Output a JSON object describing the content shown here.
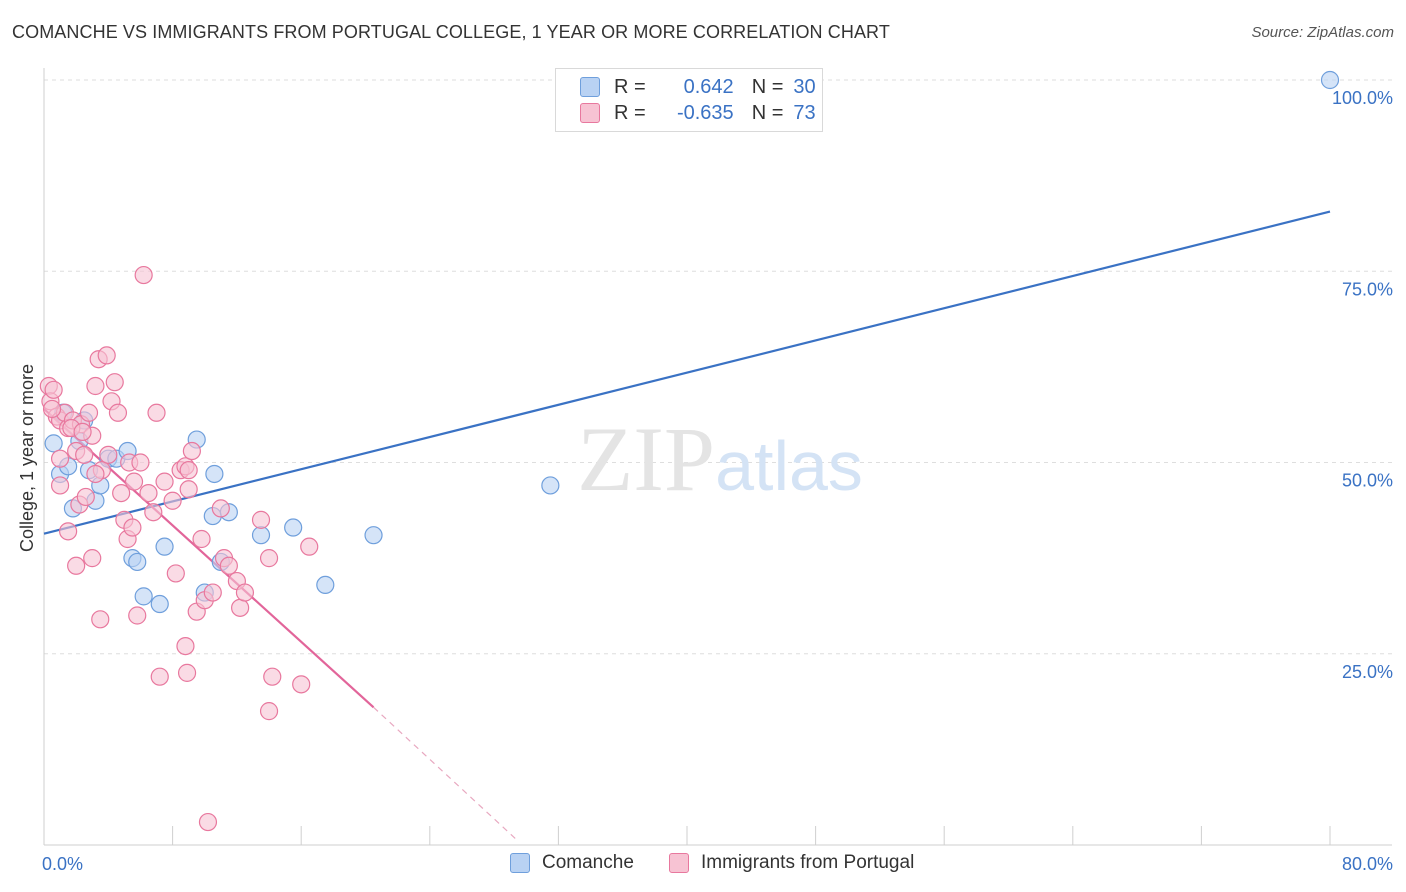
{
  "chart_data": {
    "type": "scatter",
    "title": "COMANCHE VS IMMIGRANTS FROM PORTUGAL COLLEGE, 1 YEAR OR MORE CORRELATION CHART",
    "source": "Source: ZipAtlas.com",
    "xlabel": "",
    "ylabel": "College, 1 year or more",
    "xlim": [
      0,
      80
    ],
    "ylim": [
      0,
      100
    ],
    "x_tick_labels": {
      "min": "0.0%",
      "max": "80.0%"
    },
    "y_tick_labels": [
      "25.0%",
      "50.0%",
      "75.0%",
      "100.0%"
    ],
    "y_ticks": [
      25,
      50,
      75,
      100
    ],
    "grid": true,
    "legend_position": "top-center",
    "watermark": "ZIPatlas",
    "stats": [
      {
        "r_label": "R =",
        "r_value": "0.642",
        "n_label": "N =",
        "n_value": "30"
      },
      {
        "r_label": "R =",
        "r_value": "-0.635",
        "n_label": "N =",
        "n_value": "73"
      }
    ],
    "series": [
      {
        "name": "Comanche",
        "color": "#6f9fdc",
        "fill": "#b9d2f3",
        "trend": {
          "x0": 0,
          "y0": 40.7,
          "x1": 80,
          "y1": 82.8
        },
        "points": [
          [
            0.6,
            52.5
          ],
          [
            1.0,
            48.5
          ],
          [
            1.5,
            49.5
          ],
          [
            1.8,
            44.0
          ],
          [
            2.2,
            52.8
          ],
          [
            2.8,
            49.0
          ],
          [
            3.2,
            45.0
          ],
          [
            3.5,
            47.0
          ],
          [
            4.0,
            50.5
          ],
          [
            4.5,
            50.5
          ],
          [
            5.2,
            51.5
          ],
          [
            5.5,
            37.5
          ],
          [
            5.8,
            37.0
          ],
          [
            6.2,
            32.5
          ],
          [
            7.2,
            31.5
          ],
          [
            7.5,
            39.0
          ],
          [
            9.5,
            53.0
          ],
          [
            10.0,
            33.0
          ],
          [
            10.5,
            43.0
          ],
          [
            10.6,
            48.5
          ],
          [
            11.0,
            37.0
          ],
          [
            11.5,
            43.5
          ],
          [
            13.5,
            40.5
          ],
          [
            15.5,
            41.5
          ],
          [
            17.5,
            34.0
          ],
          [
            20.5,
            40.5
          ],
          [
            31.5,
            47.0
          ],
          [
            80.0,
            100.0
          ],
          [
            1.2,
            56.5
          ],
          [
            2.5,
            55.5
          ]
        ]
      },
      {
        "name": "Immigrants from Portugal",
        "color": "#e8789e",
        "fill": "#f7c3d3",
        "trend": {
          "x0": 0,
          "y0": 57.0,
          "x1": 20.5,
          "y1": 18.0
        },
        "trend_ext": {
          "x0": 20.5,
          "y0": 18.0,
          "x1": 29.5,
          "y1": 0.5
        },
        "points": [
          [
            0.3,
            60.0
          ],
          [
            0.4,
            58.0
          ],
          [
            0.6,
            59.5
          ],
          [
            0.8,
            56.0
          ],
          [
            1.0,
            55.5
          ],
          [
            1.3,
            56.5
          ],
          [
            1.5,
            54.5
          ],
          [
            1.8,
            55.5
          ],
          [
            2.0,
            51.5
          ],
          [
            2.3,
            55.0
          ],
          [
            2.5,
            51.0
          ],
          [
            2.8,
            56.5
          ],
          [
            3.0,
            53.5
          ],
          [
            3.2,
            60.0
          ],
          [
            3.4,
            63.5
          ],
          [
            3.6,
            49.0
          ],
          [
            3.9,
            64.0
          ],
          [
            4.2,
            58.0
          ],
          [
            4.4,
            60.5
          ],
          [
            4.6,
            56.5
          ],
          [
            4.8,
            46.0
          ],
          [
            5.0,
            42.5
          ],
          [
            5.3,
            50.0
          ],
          [
            5.6,
            47.5
          ],
          [
            6.2,
            74.5
          ],
          [
            6.5,
            46.0
          ],
          [
            6.8,
            43.5
          ],
          [
            7.0,
            56.5
          ],
          [
            7.5,
            47.5
          ],
          [
            8.0,
            45.0
          ],
          [
            8.2,
            35.5
          ],
          [
            8.5,
            49.0
          ],
          [
            8.8,
            49.5
          ],
          [
            9.0,
            46.5
          ],
          [
            9.2,
            51.5
          ],
          [
            9.5,
            30.5
          ],
          [
            9.8,
            40.0
          ],
          [
            10.0,
            32.0
          ],
          [
            10.5,
            33.0
          ],
          [
            11.0,
            44.0
          ],
          [
            11.2,
            37.5
          ],
          [
            11.5,
            36.5
          ],
          [
            12.0,
            34.5
          ],
          [
            12.2,
            31.0
          ],
          [
            12.5,
            33.0
          ],
          [
            13.5,
            42.5
          ],
          [
            14.0,
            37.5
          ],
          [
            14.2,
            22.0
          ],
          [
            16.0,
            21.0
          ],
          [
            16.5,
            39.0
          ],
          [
            1.0,
            47.0
          ],
          [
            1.5,
            41.0
          ],
          [
            2.0,
            36.5
          ],
          [
            3.0,
            37.5
          ],
          [
            3.5,
            29.5
          ],
          [
            5.2,
            40.0
          ],
          [
            5.8,
            30.0
          ],
          [
            7.2,
            22.0
          ],
          [
            8.8,
            26.0
          ],
          [
            8.9,
            22.5
          ],
          [
            10.2,
            3.0
          ],
          [
            14.0,
            17.5
          ],
          [
            1.0,
            50.5
          ],
          [
            2.2,
            44.5
          ],
          [
            2.6,
            45.5
          ],
          [
            6.0,
            50.0
          ],
          [
            3.2,
            48.5
          ],
          [
            4.0,
            51.0
          ],
          [
            0.5,
            57.0
          ],
          [
            1.7,
            54.5
          ],
          [
            2.4,
            54.0
          ],
          [
            9.0,
            49.0
          ],
          [
            5.5,
            41.5
          ]
        ]
      }
    ]
  },
  "legend_bottom": [
    "Comanche",
    "Immigrants from Portugal"
  ]
}
